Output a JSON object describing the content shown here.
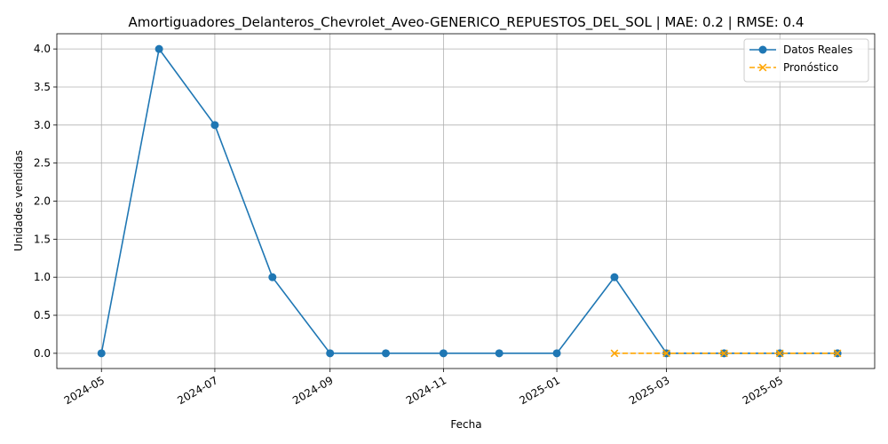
{
  "chart_data": {
    "type": "line",
    "title": "Amortiguadores_Delanteros_Chevrolet_Aveo-GENERICO_REPUESTOS_DEL_SOL | MAE: 0.2 | RMSE: 0.4",
    "xlabel": "Fecha",
    "ylabel": "Unidades vendidas",
    "ylim": [
      -0.2,
      4.2
    ],
    "xlim": [
      "2024-04-07",
      "2025-06-21"
    ],
    "grid": true,
    "legend": "top-right",
    "x_ticks": [
      "2024-05",
      "2024-07",
      "2024-09",
      "2024-11",
      "2025-01",
      "2025-03",
      "2025-05"
    ],
    "y_ticks": [
      "0.0",
      "0.5",
      "1.0",
      "1.5",
      "2.0",
      "2.5",
      "3.0",
      "3.5",
      "4.0"
    ],
    "series": [
      {
        "name": "Datos Reales",
        "color": "#1f77b4",
        "style": "solid",
        "marker": "circle",
        "x": [
          "2024-05-01",
          "2024-06-01",
          "2024-07-01",
          "2024-08-01",
          "2024-09-01",
          "2024-10-01",
          "2024-11-01",
          "2024-12-01",
          "2025-01-01",
          "2025-02-01",
          "2025-03-01",
          "2025-04-01",
          "2025-05-01",
          "2025-06-01"
        ],
        "values": [
          0,
          4,
          3,
          1,
          0,
          0,
          0,
          0,
          0,
          1,
          0,
          0,
          0,
          0
        ]
      },
      {
        "name": "Pronóstico",
        "color": "#ffa500",
        "style": "dashed",
        "marker": "x",
        "x": [
          "2025-02-01",
          "2025-03-01",
          "2025-04-01",
          "2025-05-01",
          "2025-06-01"
        ],
        "values": [
          0,
          0,
          0,
          0,
          0
        ]
      }
    ]
  }
}
